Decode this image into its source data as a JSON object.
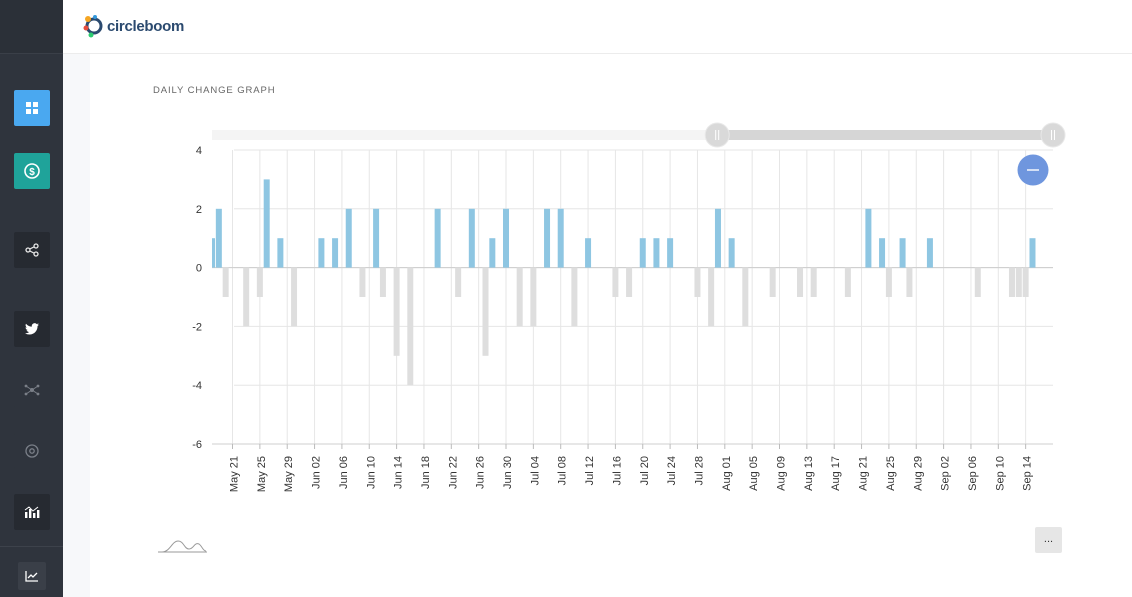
{
  "header": {
    "logo_text": "circleboom"
  },
  "sidebar": {
    "items": [
      {
        "icon": "dashboard-icon",
        "color": "#4aa8f0"
      },
      {
        "icon": "dollar-icon",
        "color": "#1fa39a"
      },
      {
        "icon": "share-icon"
      },
      {
        "icon": "twitter-icon"
      },
      {
        "icon": "network-icon"
      },
      {
        "icon": "target-icon"
      },
      {
        "icon": "bar-chart-icon"
      },
      {
        "icon": "line-chart-icon"
      }
    ]
  },
  "chart_data": {
    "type": "bar",
    "title": "DAILY CHANGE GRAPH",
    "ylim": [
      -6,
      4
    ],
    "yticks": [
      4,
      2,
      0,
      -2,
      -4,
      -6
    ],
    "date_range": [
      "May 18",
      "Sep 18"
    ],
    "x_tick_labels": [
      "May 21",
      "May 25",
      "May 29",
      "Jun 02",
      "Jun 06",
      "Jun 10",
      "Jun 14",
      "Jun 18",
      "Jun 22",
      "Jun 26",
      "Jun 30",
      "Jul 04",
      "Jul 08",
      "Jul 12",
      "Jul 16",
      "Jul 20",
      "Jul 24",
      "Jul 28",
      "Aug 01",
      "Aug 05",
      "Aug 09",
      "Aug 13",
      "Aug 17",
      "Aug 21",
      "Aug 25",
      "Aug 29",
      "Sep 02",
      "Sep 06",
      "Sep 10",
      "Sep 14"
    ],
    "colors": {
      "positive": "#8ec6e2",
      "negative": "#dedede",
      "grid": "#e6e6e6"
    },
    "bars": [
      {
        "date": "May 18",
        "value": 1
      },
      {
        "date": "May 19",
        "value": 2
      },
      {
        "date": "May 20",
        "value": -1
      },
      {
        "date": "May 23",
        "value": -2
      },
      {
        "date": "May 25",
        "value": -1
      },
      {
        "date": "May 26",
        "value": 3
      },
      {
        "date": "May 28",
        "value": 1
      },
      {
        "date": "May 30",
        "value": -2
      },
      {
        "date": "Jun 03",
        "value": 1
      },
      {
        "date": "Jun 05",
        "value": 1
      },
      {
        "date": "Jun 07",
        "value": 2
      },
      {
        "date": "Jun 09",
        "value": -1
      },
      {
        "date": "Jun 11",
        "value": 2
      },
      {
        "date": "Jun 12",
        "value": -1
      },
      {
        "date": "Jun 14",
        "value": -3
      },
      {
        "date": "Jun 16",
        "value": -4
      },
      {
        "date": "Jun 20",
        "value": 2
      },
      {
        "date": "Jun 23",
        "value": -1
      },
      {
        "date": "Jun 25",
        "value": 2
      },
      {
        "date": "Jun 27",
        "value": -3
      },
      {
        "date": "Jun 28",
        "value": 1
      },
      {
        "date": "Jun 30",
        "value": 2
      },
      {
        "date": "Jul 02",
        "value": -2
      },
      {
        "date": "Jul 04",
        "value": -2
      },
      {
        "date": "Jul 06",
        "value": 2
      },
      {
        "date": "Jul 08",
        "value": 2
      },
      {
        "date": "Jul 10",
        "value": -2
      },
      {
        "date": "Jul 12",
        "value": 1
      },
      {
        "date": "Jul 16",
        "value": -1
      },
      {
        "date": "Jul 18",
        "value": -1
      },
      {
        "date": "Jul 20",
        "value": 1
      },
      {
        "date": "Jul 22",
        "value": 1
      },
      {
        "date": "Jul 24",
        "value": 1
      },
      {
        "date": "Jul 28",
        "value": -1
      },
      {
        "date": "Jul 30",
        "value": -2
      },
      {
        "date": "Jul 31",
        "value": 2
      },
      {
        "date": "Aug 02",
        "value": 1
      },
      {
        "date": "Aug 04",
        "value": -2
      },
      {
        "date": "Aug 08",
        "value": -1
      },
      {
        "date": "Aug 12",
        "value": -1
      },
      {
        "date": "Aug 14",
        "value": -1
      },
      {
        "date": "Aug 19",
        "value": -1
      },
      {
        "date": "Aug 22",
        "value": 2
      },
      {
        "date": "Aug 24",
        "value": 1
      },
      {
        "date": "Aug 25",
        "value": -1
      },
      {
        "date": "Aug 27",
        "value": 1
      },
      {
        "date": "Aug 28",
        "value": -1
      },
      {
        "date": "Aug 31",
        "value": 1
      },
      {
        "date": "Sep 07",
        "value": -1
      },
      {
        "date": "Sep 12",
        "value": -1
      },
      {
        "date": "Sep 13",
        "value": -1
      },
      {
        "date": "Sep 14",
        "value": -1
      },
      {
        "date": "Sep 15",
        "value": 1
      }
    ],
    "scrollbar": {
      "selected_fraction": [
        0.6,
        1.0
      ]
    }
  },
  "toolbar": {
    "menu_label": "..."
  }
}
